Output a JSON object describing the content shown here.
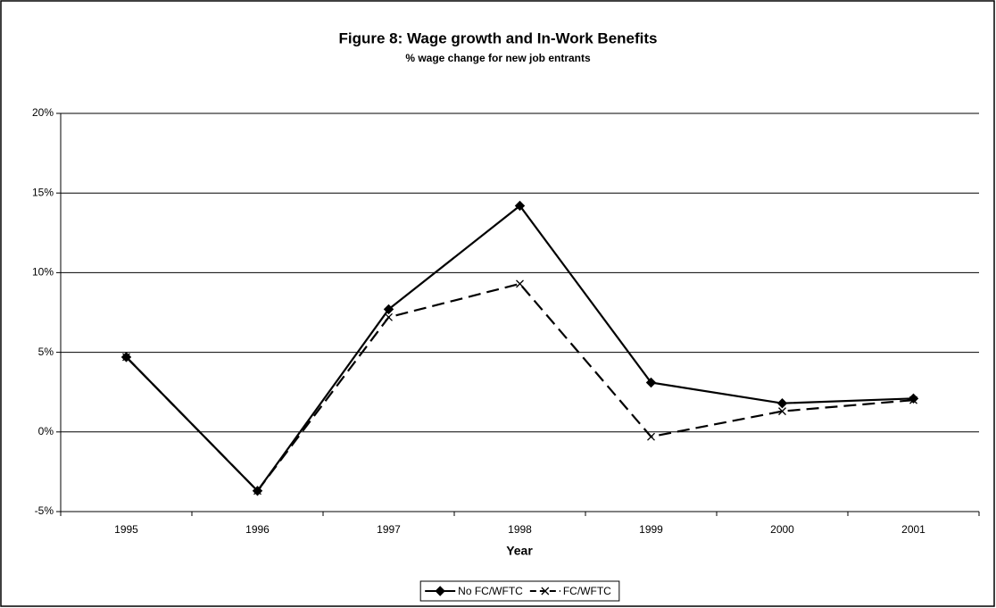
{
  "chart_data": {
    "type": "line",
    "title": "Figure 8: Wage growth and In-Work Benefits",
    "subtitle": "% wage change for new job entrants",
    "x_label": "Year",
    "categories": [
      "1995",
      "1996",
      "1997",
      "1998",
      "1999",
      "2000",
      "2001"
    ],
    "series": [
      {
        "name": "No FC/WFTC",
        "color": "#000000",
        "line_style": "solid",
        "marker": "diamond",
        "values": [
          4.7,
          -3.7,
          7.7,
          14.2,
          3.1,
          1.8,
          2.1
        ]
      },
      {
        "name": "FC/WFTC",
        "color": "#000000",
        "line_style": "dashed",
        "marker": "x",
        "values": [
          4.7,
          -3.7,
          7.2,
          9.3,
          -0.3,
          1.3,
          2.0
        ]
      }
    ],
    "ylim": [
      -5,
      20
    ],
    "yticks": [
      {
        "value": -5,
        "label": "-5%"
      },
      {
        "value": 0,
        "label": "0%"
      },
      {
        "value": 5,
        "label": "5%"
      },
      {
        "value": 10,
        "label": "10%"
      },
      {
        "value": 15,
        "label": "15%"
      },
      {
        "value": 20,
        "label": "20%"
      }
    ],
    "grid": true,
    "legend": "bottom"
  }
}
